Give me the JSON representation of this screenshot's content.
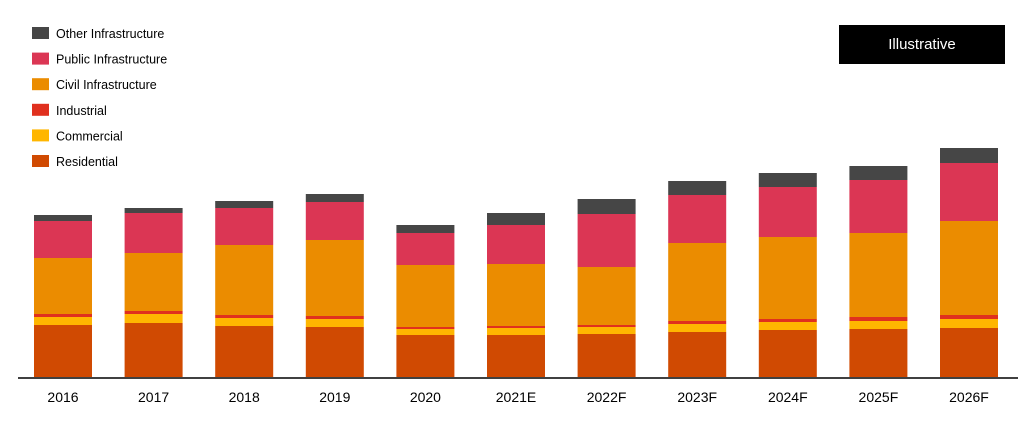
{
  "badge": {
    "label": "Illustrative",
    "background": "#000000",
    "text_color": "#ffffff"
  },
  "chart_data": {
    "type": "bar",
    "stacked": true,
    "title": "",
    "xlabel": "",
    "ylabel": "",
    "y_axis_visible": false,
    "grid": false,
    "legend_position": "top-left",
    "categories": [
      "2016",
      "2017",
      "2018",
      "2019",
      "2020",
      "2021E",
      "2022F",
      "2023F",
      "2024F",
      "2025F",
      "2026F"
    ],
    "series": [
      {
        "name": "Residential",
        "color": "#d04a02",
        "values": [
          52,
          54,
          51,
          50,
          42,
          42,
          43,
          45,
          47,
          48,
          49
        ]
      },
      {
        "name": "Commercial",
        "color": "#ffb600",
        "values": [
          8,
          9,
          8,
          8,
          6,
          7,
          7,
          8,
          8,
          8,
          9
        ]
      },
      {
        "name": "Industrial",
        "color": "#e0301e",
        "values": [
          3,
          3,
          3,
          3,
          2,
          2,
          2,
          3,
          3,
          4,
          4
        ]
      },
      {
        "name": "Civil Infrastructure",
        "color": "#eb8c00",
        "values": [
          56,
          58,
          70,
          76,
          62,
          62,
          58,
          78,
          82,
          84,
          94
        ]
      },
      {
        "name": "Public Infrastructure",
        "color": "#db3654",
        "values": [
          37,
          40,
          37,
          38,
          32,
          39,
          53,
          48,
          50,
          53,
          58
        ]
      },
      {
        "name": "Other Infrastructure",
        "color": "#464646",
        "values": [
          6,
          5,
          7,
          8,
          8,
          12,
          15,
          14,
          14,
          14,
          15
        ]
      }
    ],
    "ylim": [
      0,
      230
    ]
  }
}
